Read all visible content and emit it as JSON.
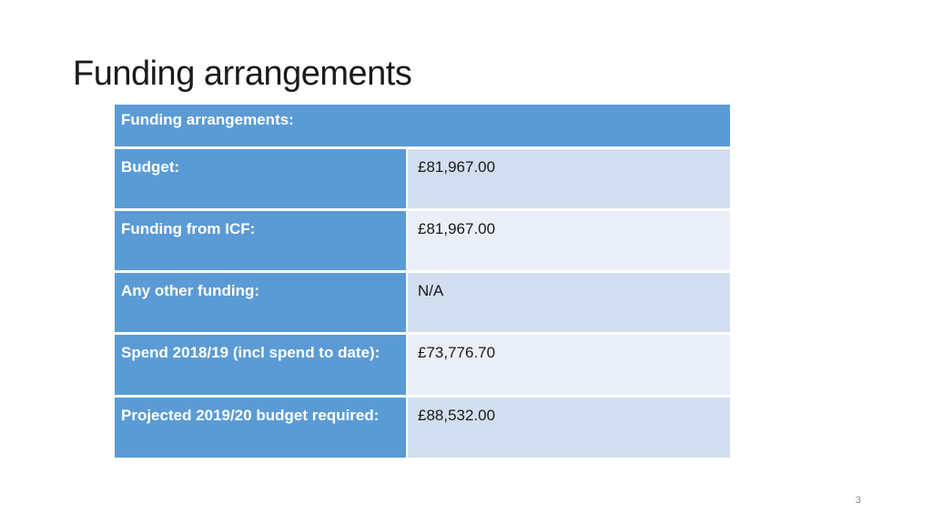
{
  "slide": {
    "title": "Funding arrangements",
    "page_number": "3"
  },
  "table": {
    "header": "Funding arrangements:",
    "rows": [
      {
        "label": "Budget:",
        "value": "£81,967.00"
      },
      {
        "label": "Funding from ICF:",
        "value": "£81,967.00"
      },
      {
        "label": "Any other funding:",
        "value": "N/A"
      },
      {
        "label": "Spend 2018/19 (incl spend to date):",
        "value": "£73,776.70"
      },
      {
        "label": "Projected 2019/20 budget required:",
        "value": "£88,532.00"
      }
    ]
  }
}
